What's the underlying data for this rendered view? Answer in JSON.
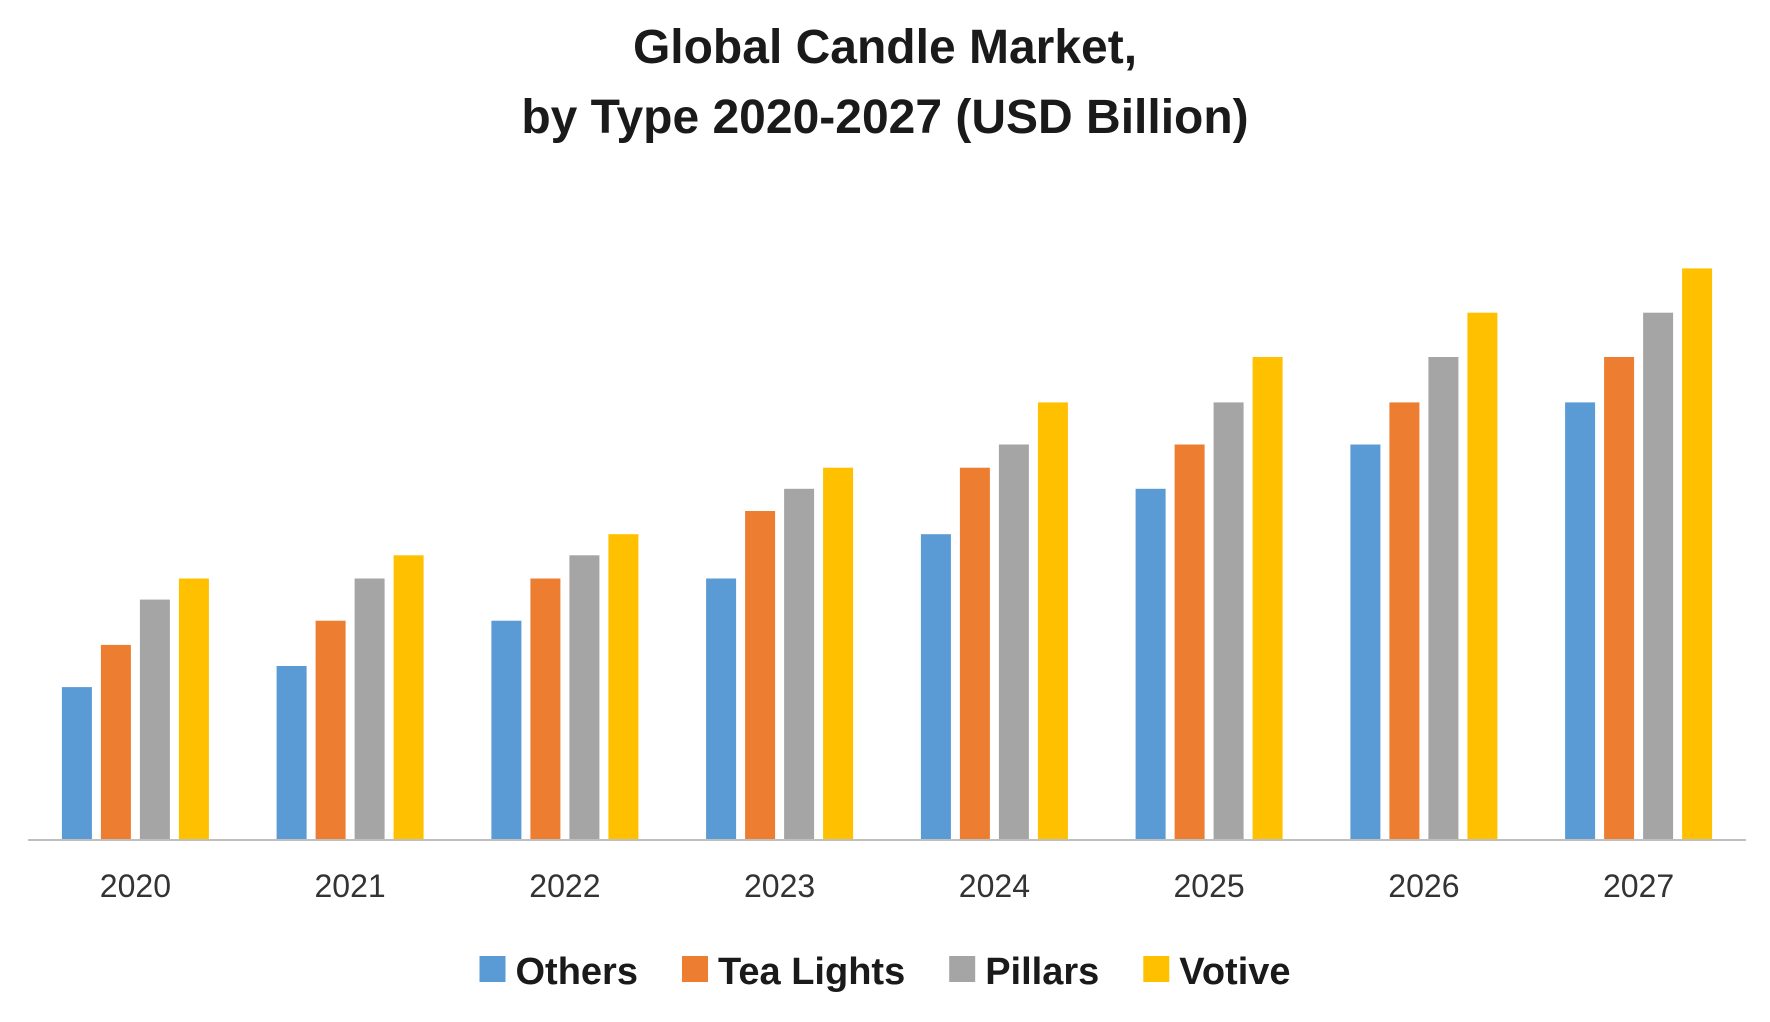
{
  "chart_data": {
    "type": "bar",
    "title": "Global Candle Market,",
    "subtitle": "by Type 2020-2027 (USD Billion)",
    "categories": [
      "2020",
      "2021",
      "2022",
      "2023",
      "2024",
      "2025",
      "2026",
      "2027"
    ],
    "series": [
      {
        "name": "Others",
        "color": "#5B9BD5",
        "values": [
          1.45,
          1.65,
          2.08,
          2.48,
          2.9,
          3.33,
          3.75,
          4.15
        ]
      },
      {
        "name": "Tea Lights",
        "color": "#ED7D31",
        "values": [
          1.85,
          2.08,
          2.48,
          3.12,
          3.53,
          3.75,
          4.15,
          4.58
        ]
      },
      {
        "name": "Pillars",
        "color": "#A5A5A5",
        "values": [
          2.28,
          2.48,
          2.7,
          3.33,
          3.75,
          4.15,
          4.58,
          5.0
        ]
      },
      {
        "name": "Votive",
        "color": "#FFC000",
        "values": [
          2.48,
          2.7,
          2.9,
          3.53,
          4.15,
          4.58,
          5.0,
          5.42
        ]
      }
    ],
    "ylim": [
      0,
      6.5
    ],
    "grid": false,
    "legend": "bottom"
  }
}
